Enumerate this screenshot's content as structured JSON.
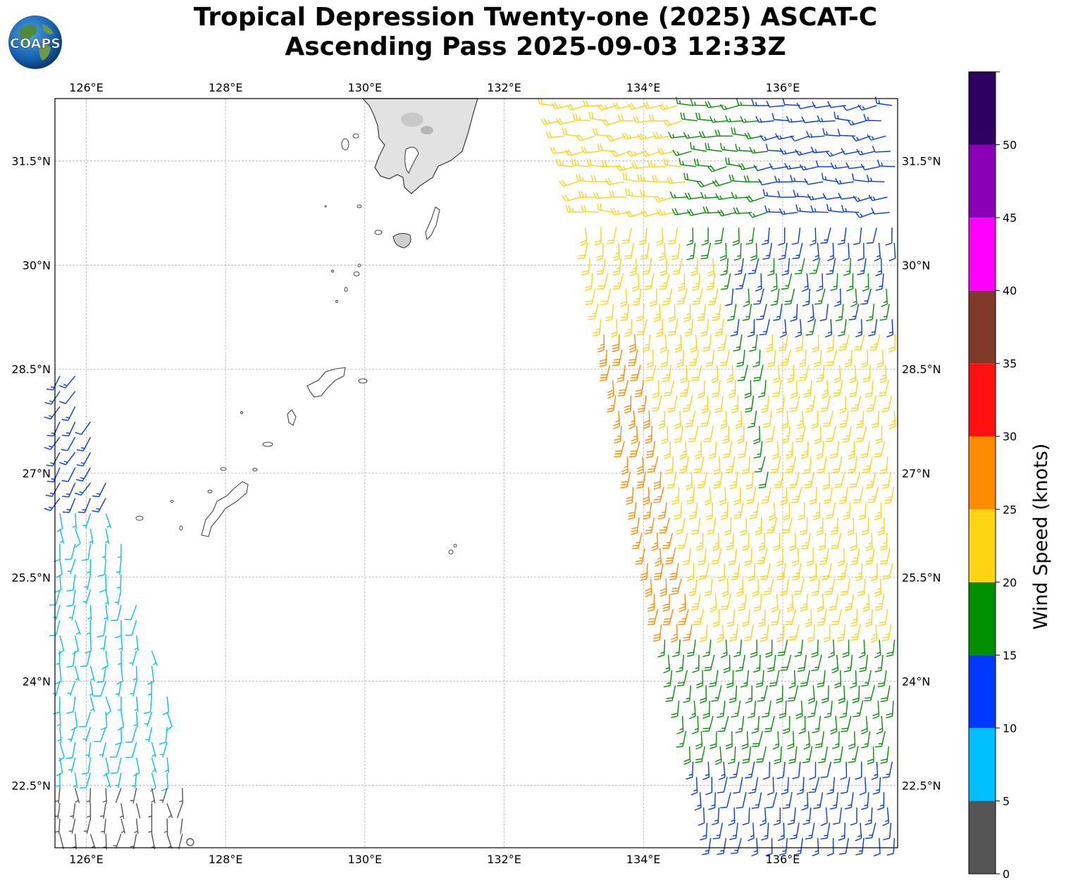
{
  "title": {
    "line1": "Tropical Depression Twenty-one (2025) ASCAT-C",
    "line2": "Ascending Pass 2025-09-03 12:33Z"
  },
  "logo": {
    "text": "COAPS",
    "icon": "globe-logo-icon"
  },
  "map": {
    "lon_range": [
      125.55,
      137.65
    ],
    "lat_range": [
      21.6,
      32.4
    ],
    "lon_ticks": [
      "126°E",
      "128°E",
      "130°E",
      "132°E",
      "134°E",
      "136°E"
    ],
    "lat_ticks": [
      "22.5°N",
      "24°N",
      "25.5°N",
      "27°N",
      "28.5°N",
      "30°N",
      "31.5°N"
    ],
    "gridlines": true,
    "coastline_color": "#444444",
    "land": "Kyushu and Ryukyu Islands (outlined, Kyushu shaded grey terrain)"
  },
  "colorbar": {
    "label": "Wind Speed (knots)",
    "tick_labels": [
      "0",
      "5",
      "10",
      "15",
      "20",
      "25",
      "30",
      "35",
      "40",
      "45",
      "50"
    ],
    "bins": [
      {
        "min": 0,
        "max": 5,
        "color": "#555555"
      },
      {
        "min": 5,
        "max": 10,
        "color": "#00bfff"
      },
      {
        "min": 10,
        "max": 15,
        "color": "#0038ff"
      },
      {
        "min": 15,
        "max": 20,
        "color": "#009000"
      },
      {
        "min": 20,
        "max": 25,
        "color": "#ffd412"
      },
      {
        "min": 25,
        "max": 30,
        "color": "#ff8c00"
      },
      {
        "min": 30,
        "max": 35,
        "color": "#ff1010"
      },
      {
        "min": 35,
        "max": 40,
        "color": "#7f3a29"
      },
      {
        "min": 40,
        "max": 45,
        "color": "#ff00ff"
      },
      {
        "min": 45,
        "max": 50,
        "color": "#8a00b8"
      },
      {
        "min": 50,
        "max": 55,
        "color": "#2e0060"
      }
    ]
  },
  "chart_data": {
    "type": "scatter",
    "description_units": "wind barbs: lon (°E), lat (°N), speed (knots)",
    "swaths": [
      {
        "name": "west-swath",
        "edge_points": [
          [
            125.55,
            28.5
          ],
          [
            125.9,
            28.5
          ],
          [
            126.2,
            27.2
          ],
          [
            126.6,
            25.6
          ],
          [
            127.2,
            23.8
          ],
          [
            127.5,
            21.6
          ],
          [
            125.55,
            21.6
          ]
        ],
        "dominant_speeds": [
          "0-5 kt south",
          "5-10 kt central",
          "10-15 kt north"
        ]
      },
      {
        "name": "east-swath",
        "edge_points": [
          [
            132.6,
            32.4
          ],
          [
            137.65,
            32.4
          ],
          [
            137.65,
            21.6
          ],
          [
            134.9,
            21.6
          ],
          [
            134.0,
            25.5
          ],
          [
            133.2,
            29.7
          ],
          [
            133.0,
            31.0
          ]
        ],
        "dominant_speeds": [
          "10-15 kt",
          "15-20 kt",
          "20-25 kt",
          "25-30 kt"
        ]
      }
    ],
    "calm_circle": [
      127.5,
      21.7
    ]
  }
}
